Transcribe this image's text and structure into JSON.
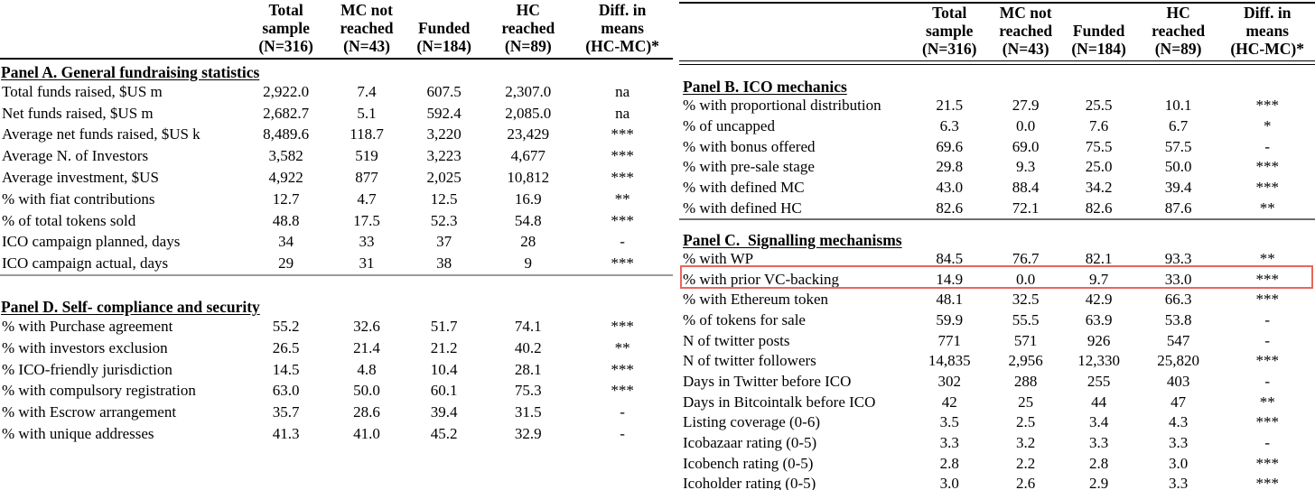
{
  "columns": [
    {
      "l1": "Total",
      "l2": "sample",
      "l3": "(N=316)"
    },
    {
      "l1": "MC not",
      "l2": "reached",
      "l3": "(N=43)"
    },
    {
      "l1": "",
      "l2": "Funded",
      "l3": "(N=184)"
    },
    {
      "l1": "HC",
      "l2": "reached",
      "l3": "(N=89)"
    },
    {
      "l1": "Diff. in",
      "l2": "means",
      "l3": "(HC-MC)*"
    }
  ],
  "left": {
    "panels": [
      {
        "title": "Panel A. General fundraising statistics",
        "rows": [
          {
            "label": "Total funds raised, $US m",
            "values": [
              "2,922.0",
              "7.4",
              "607.5",
              "2,307.0",
              "na"
            ]
          },
          {
            "label": "Net funds raised, $US m",
            "values": [
              "2,682.7",
              "5.1",
              "592.4",
              "2,085.0",
              "na"
            ]
          },
          {
            "label": "Average net funds raised, $US k",
            "values": [
              "8,489.6",
              "118.7",
              "3,220",
              "23,429",
              "***"
            ]
          },
          {
            "label": "Average N. of Investors",
            "values": [
              "3,582",
              "519",
              "3,223",
              "4,677",
              "***"
            ]
          },
          {
            "label": "Average investment, $US",
            "values": [
              "4,922",
              "877",
              "2,025",
              "10,812",
              "***"
            ]
          },
          {
            "label": "% with fiat contributions",
            "values": [
              "12.7",
              "4.7",
              "12.5",
              "16.9",
              "**"
            ]
          },
          {
            "label": "% of total tokens sold",
            "values": [
              "48.8",
              "17.5",
              "52.3",
              "54.8",
              "***"
            ]
          },
          {
            "label": "ICO campaign planned, days",
            "values": [
              "34",
              "33",
              "37",
              "28",
              "-"
            ]
          },
          {
            "label": "ICO campaign actual, days",
            "values": [
              "29",
              "31",
              "38",
              "9",
              "***"
            ]
          }
        ]
      },
      {
        "title": "Panel D. Self- compliance and security",
        "rows": [
          {
            "label": "% with Purchase agreement",
            "values": [
              "55.2",
              "32.6",
              "51.7",
              "74.1",
              "***"
            ]
          },
          {
            "label": "% with investors exclusion",
            "values": [
              "26.5",
              "21.4",
              "21.2",
              "40.2",
              "**"
            ]
          },
          {
            "label": "% ICO-friendly jurisdiction",
            "values": [
              "14.5",
              "4.8",
              "10.4",
              "28.1",
              "***"
            ]
          },
          {
            "label": "% with compulsory registration",
            "values": [
              "63.0",
              "50.0",
              "60.1",
              "75.3",
              "***"
            ]
          },
          {
            "label": "% with Escrow arrangement",
            "values": [
              "35.7",
              "28.6",
              "39.4",
              "31.5",
              "-"
            ]
          },
          {
            "label": "% with unique addresses",
            "values": [
              "41.3",
              "41.0",
              "45.2",
              "32.9",
              "-"
            ]
          }
        ]
      }
    ]
  },
  "right": {
    "panels": [
      {
        "title": "Panel B. ICO mechanics",
        "rows": [
          {
            "label": "% with proportional distribution",
            "values": [
              "21.5",
              "27.9",
              "25.5",
              "10.1",
              "***"
            ]
          },
          {
            "label": "% of uncapped",
            "values": [
              "6.3",
              "0.0",
              "7.6",
              "6.7",
              "*"
            ]
          },
          {
            "label": "% with bonus offered",
            "values": [
              "69.6",
              "69.0",
              "75.5",
              "57.5",
              "-"
            ]
          },
          {
            "label": "% with pre-sale stage",
            "values": [
              "29.8",
              "9.3",
              "25.0",
              "50.0",
              "***"
            ]
          },
          {
            "label": "% with defined MC",
            "values": [
              "43.0",
              "88.4",
              "34.2",
              "39.4",
              "***"
            ]
          },
          {
            "label": "% with defined HC",
            "values": [
              "82.6",
              "72.1",
              "82.6",
              "87.6",
              "**"
            ]
          }
        ]
      },
      {
        "title": "Panel C.  Signalling mechanisms",
        "rows": [
          {
            "label": "% with WP",
            "values": [
              "84.5",
              "76.7",
              "82.1",
              "93.3",
              "**"
            ]
          },
          {
            "label": "% with prior VC-backing",
            "values": [
              "14.9",
              "0.0",
              "9.7",
              "33.0",
              "***"
            ]
          },
          {
            "label": "% with Ethereum token",
            "values": [
              "48.1",
              "32.5",
              "42.9",
              "66.3",
              "***"
            ]
          },
          {
            "label": "% of tokens for sale",
            "values": [
              "59.9",
              "55.5",
              "63.9",
              "53.8",
              "-"
            ]
          },
          {
            "label": "N of twitter posts",
            "values": [
              "771",
              "571",
              "926",
              "547",
              "-"
            ]
          },
          {
            "label": "N of twitter followers",
            "values": [
              "14,835",
              "2,956",
              "12,330",
              "25,820",
              "***"
            ]
          },
          {
            "label": "Days in Twitter before ICO",
            "values": [
              "302",
              "288",
              "255",
              "403",
              "-"
            ]
          },
          {
            "label": "Days in Bitcointalk before ICO",
            "values": [
              "42",
              "25",
              "44",
              "47",
              "**"
            ]
          },
          {
            "label": "Listing coverage (0-6)",
            "values": [
              "3.5",
              "2.5",
              "3.4",
              "4.3",
              "***"
            ]
          },
          {
            "label": "Icobazaar rating (0-5)",
            "values": [
              "3.3",
              "3.2",
              "3.3",
              "3.3",
              "-"
            ]
          },
          {
            "label": "Icobench rating (0-5)",
            "values": [
              "2.8",
              "2.2",
              "2.8",
              "3.0",
              "***"
            ]
          },
          {
            "label": "Icoholder rating (0-5)",
            "values": [
              "3.0",
              "2.6",
              "2.9",
              "3.3",
              "***"
            ]
          }
        ]
      }
    ]
  },
  "annotation": {
    "highlighted_row": "% with prior VC-backing",
    "color": "#e8665c"
  }
}
